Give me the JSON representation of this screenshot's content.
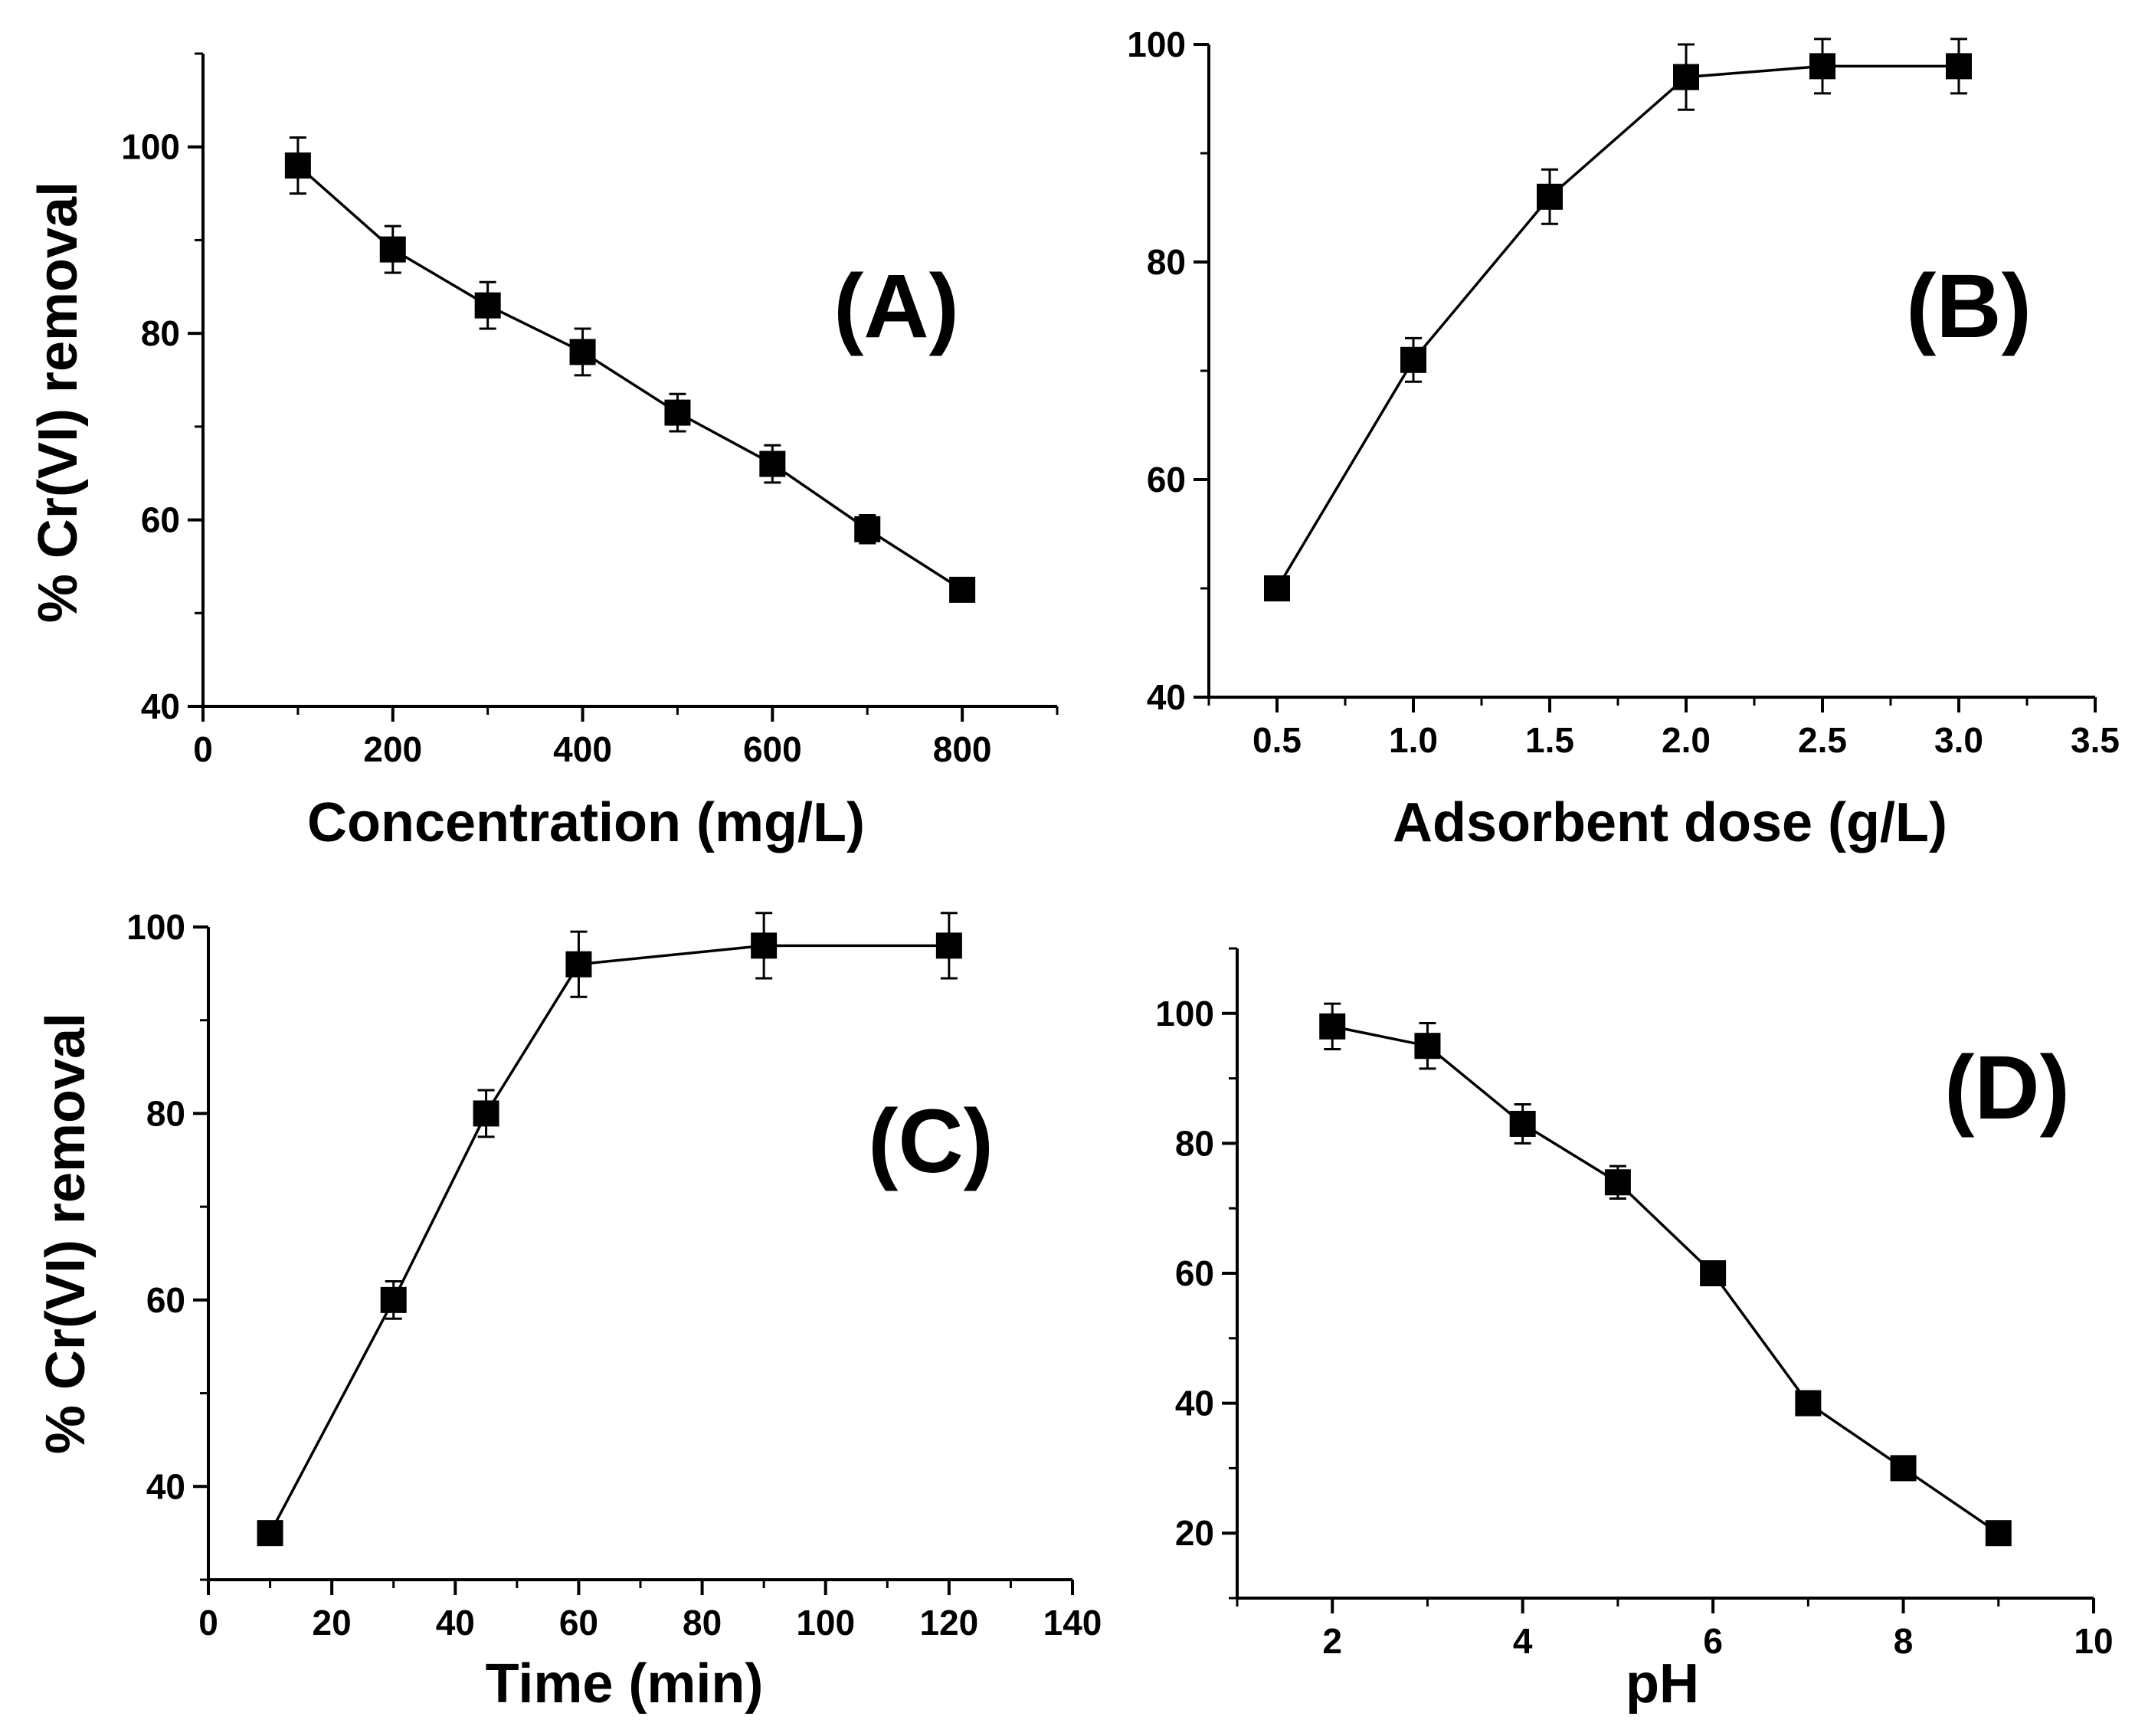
{
  "chart_data": [
    {
      "type": "line",
      "panel_label": "(A)",
      "xlabel": "Concentration (mg/L)",
      "ylabel": "% Cr(VI) removal",
      "xlim": [
        0,
        900
      ],
      "ylim": [
        40,
        110
      ],
      "xticks": [
        0,
        200,
        400,
        600,
        800
      ],
      "xtick_labels": [
        "0",
        "200",
        "400",
        "600",
        "800"
      ],
      "yticks": [
        40,
        60,
        80,
        100
      ],
      "ytick_labels": [
        "40",
        "60",
        "80",
        "100"
      ],
      "series": [
        {
          "name": "% Cr(VI) removal",
          "x": [
            100,
            200,
            300,
            400,
            500,
            600,
            700,
            800
          ],
          "y": [
            98,
            89,
            83,
            78,
            71.5,
            66,
            59,
            52.5
          ],
          "error": [
            3,
            2.5,
            2.5,
            2.5,
            2,
            2,
            1.5,
            1
          ]
        }
      ]
    },
    {
      "type": "line",
      "panel_label": "(B)",
      "xlabel": "Adsorbent dose (g/L)",
      "ylabel": "",
      "xlim": [
        0.25,
        3.5
      ],
      "ylim": [
        40,
        100
      ],
      "xticks": [
        0.5,
        1.0,
        1.5,
        2.0,
        2.5,
        3.0,
        3.5
      ],
      "xtick_labels": [
        "0.5",
        "1.0",
        "1.5",
        "2.0",
        "2.5",
        "3.0",
        "3.5"
      ],
      "yticks": [
        40,
        60,
        80,
        100
      ],
      "ytick_labels": [
        "40",
        "60",
        "80",
        "100"
      ],
      "series": [
        {
          "name": "% Cr(VI) removal",
          "x": [
            0.5,
            1.0,
            1.5,
            2.0,
            2.5,
            3.0
          ],
          "y": [
            50,
            71,
            86,
            97,
            98,
            98
          ],
          "error": [
            1,
            2,
            2.5,
            3,
            2.5,
            2.5
          ]
        }
      ]
    },
    {
      "type": "line",
      "panel_label": "(C)",
      "xlabel": "Time (min)",
      "ylabel": "% Cr(VI) removal",
      "xlim": [
        0,
        140
      ],
      "ylim": [
        30,
        100
      ],
      "xticks": [
        0,
        20,
        40,
        60,
        80,
        100,
        120,
        140
      ],
      "xtick_labels": [
        "0",
        "20",
        "40",
        "60",
        "80",
        "100",
        "120",
        "140"
      ],
      "yticks": [
        40,
        60,
        80,
        100
      ],
      "ytick_labels": [
        "40",
        "60",
        "80",
        "100"
      ],
      "series": [
        {
          "name": "% Cr(VI) removal",
          "x": [
            10,
            30,
            45,
            60,
            90,
            120
          ],
          "y": [
            35,
            60,
            80,
            96,
            98,
            98
          ],
          "error": [
            1,
            2,
            2.5,
            3.5,
            3.5,
            3.5
          ]
        }
      ]
    },
    {
      "type": "line",
      "panel_label": "(D)",
      "xlabel": "pH",
      "ylabel": "",
      "xlim": [
        1,
        10
      ],
      "ylim": [
        10,
        110
      ],
      "xticks": [
        2,
        4,
        6,
        8,
        10
      ],
      "xtick_labels": [
        "2",
        "4",
        "6",
        "8",
        "10"
      ],
      "yticks": [
        20,
        40,
        60,
        80,
        100
      ],
      "ytick_labels": [
        "20",
        "40",
        "60",
        "80",
        "100"
      ],
      "series": [
        {
          "name": "% Cr(VI) removal",
          "x": [
            2,
            3,
            4,
            5,
            6,
            7,
            8,
            9
          ],
          "y": [
            98,
            95,
            83,
            74,
            60,
            40,
            30,
            20
          ],
          "error": [
            3.5,
            3.5,
            3,
            2.5,
            1.5,
            1,
            1,
            1
          ]
        }
      ]
    }
  ]
}
